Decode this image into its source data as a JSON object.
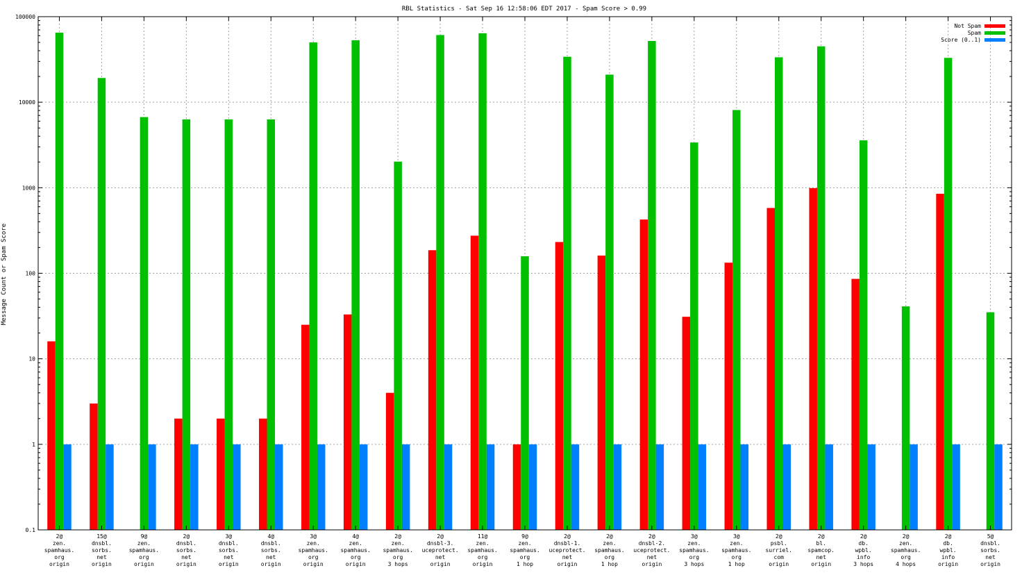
{
  "chart_data": {
    "type": "bar",
    "title": "RBL Statistics - Sat Sep 16 12:58:06 EDT 2017 - Spam Score > 0.99",
    "xlabel": "",
    "ylabel": "Message Count or Spam Score",
    "yscale": "log",
    "ylim": [
      0.1,
      100000
    ],
    "yticks": [
      "0.1",
      "1",
      "10",
      "100",
      "1000",
      "10000",
      "100000"
    ],
    "grid": true,
    "legend_position": "top-right",
    "categories": [
      [
        "2@",
        "zen.",
        "spamhaus.",
        "org",
        "origin"
      ],
      [
        "15@",
        "dnsbl.",
        "sorbs.",
        "net",
        "origin"
      ],
      [
        "9@",
        "zen.",
        "spamhaus.",
        "org",
        "origin"
      ],
      [
        "2@",
        "dnsbl.",
        "sorbs.",
        "net",
        "origin"
      ],
      [
        "3@",
        "dnsbl.",
        "sorbs.",
        "net",
        "origin"
      ],
      [
        "4@",
        "dnsbl.",
        "sorbs.",
        "net",
        "origin"
      ],
      [
        "3@",
        "zen.",
        "spamhaus.",
        "org",
        "origin"
      ],
      [
        "4@",
        "zen.",
        "spamhaus.",
        "org",
        "origin"
      ],
      [
        "2@",
        "zen.",
        "spamhaus.",
        "org",
        "3 hops"
      ],
      [
        "2@",
        "dnsbl-3.",
        "uceprotect.",
        "net",
        "origin"
      ],
      [
        "11@",
        "zen.",
        "spamhaus.",
        "org",
        "origin"
      ],
      [
        "9@",
        "zen.",
        "spamhaus.",
        "org",
        "1 hop"
      ],
      [
        "2@",
        "dnsbl-1.",
        "uceprotect.",
        "net",
        "origin"
      ],
      [
        "2@",
        "zen.",
        "spamhaus.",
        "org",
        "1 hop"
      ],
      [
        "2@",
        "dnsbl-2.",
        "uceprotect.",
        "net",
        "origin"
      ],
      [
        "3@",
        "zen.",
        "spamhaus.",
        "org",
        "3 hops"
      ],
      [
        "3@",
        "zen.",
        "spamhaus.",
        "org",
        "1 hop"
      ],
      [
        "2@",
        "psbl.",
        "surriel.",
        "com",
        "origin"
      ],
      [
        "2@",
        "bl.",
        "spamcop.",
        "net",
        "origin"
      ],
      [
        "2@",
        "db.",
        "wpbl.",
        "info",
        "3 hops"
      ],
      [
        "2@",
        "zen.",
        "spamhaus.",
        "org",
        "4 hops"
      ],
      [
        "2@",
        "db.",
        "wpbl.",
        "info",
        "origin"
      ],
      [
        "5@",
        "dnsbl.",
        "sorbs.",
        "net",
        "origin"
      ]
    ],
    "series": [
      {
        "name": "Not Spam",
        "color": "#ff0000",
        "values": [
          16,
          3,
          0,
          2,
          2,
          2,
          25,
          33,
          4,
          186,
          275,
          1,
          232,
          161,
          425,
          31,
          133,
          580,
          990,
          86,
          0,
          850,
          0
        ]
      },
      {
        "name": "Spam",
        "color": "#00c000",
        "values": [
          65000,
          19200,
          6700,
          6300,
          6300,
          6300,
          50000,
          53000,
          2020,
          61000,
          64000,
          158,
          34000,
          21000,
          52000,
          3380,
          8100,
          33500,
          45000,
          3580,
          41,
          33000,
          35
        ]
      },
      {
        "name": "Score (0..1)",
        "color": "#0080ff",
        "values": [
          1,
          1,
          1,
          1,
          1,
          1,
          1,
          1,
          1,
          1,
          1,
          1,
          1,
          1,
          1,
          1,
          1,
          1,
          1,
          1,
          1,
          1,
          1
        ]
      }
    ]
  }
}
